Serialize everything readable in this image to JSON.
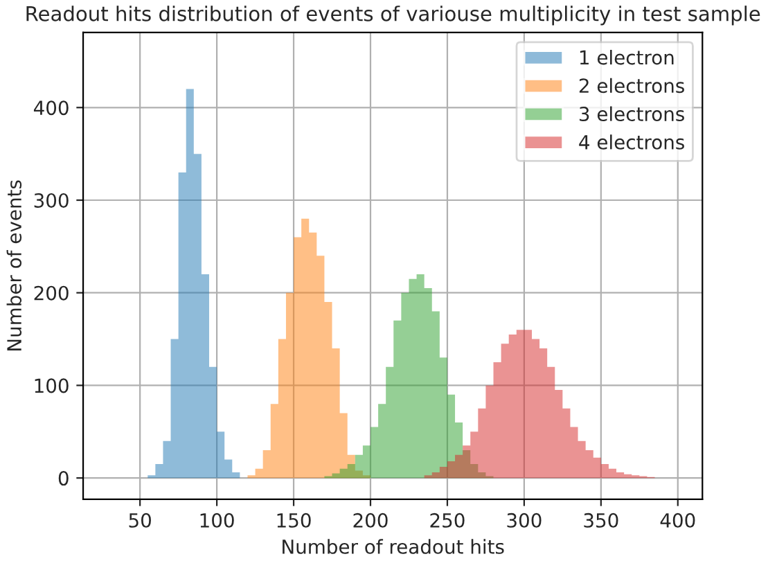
{
  "chart_data": {
    "type": "histogram",
    "title": "Readout hits distribution of events of variouse multiplicity in test sample",
    "xlabel": "Number of readout hits",
    "ylabel": "Number of events",
    "xlim": [
      13,
      416
    ],
    "ylim": [
      -23,
      481
    ],
    "xticks": [
      50,
      100,
      150,
      200,
      250,
      300,
      350,
      400
    ],
    "yticks": [
      0,
      100,
      200,
      300,
      400
    ],
    "grid": true,
    "legend": "top right",
    "bins": [
      55,
      60,
      65,
      70,
      75,
      80,
      85,
      90,
      95,
      100,
      105,
      110,
      115,
      120,
      125,
      130,
      135,
      140,
      145,
      150,
      155,
      160,
      165,
      170,
      175,
      180,
      185,
      190,
      195,
      200,
      205,
      210,
      215,
      220,
      225,
      230,
      235,
      240,
      245,
      250,
      255,
      260,
      265,
      270,
      275,
      280,
      285,
      290,
      295,
      300,
      305,
      310,
      315,
      320,
      325,
      330,
      335,
      340,
      345,
      350,
      355,
      360,
      365,
      370,
      375,
      380,
      385
    ],
    "series": [
      {
        "name": "1 electron",
        "color": "#1f77b4",
        "values": [
          3,
          15,
          40,
          150,
          330,
          420,
          350,
          220,
          120,
          50,
          20,
          6,
          0,
          0,
          0,
          0,
          0,
          0,
          0,
          0,
          0,
          0,
          0,
          0,
          0,
          0,
          0,
          0,
          0,
          0,
          0,
          0,
          0,
          0,
          0,
          0,
          0,
          0,
          0,
          0,
          0,
          0,
          0,
          0,
          0,
          0,
          0,
          0,
          0,
          0,
          0,
          0,
          0,
          0,
          0,
          0,
          0,
          0,
          0,
          0,
          0,
          0,
          0,
          0,
          0,
          0
        ]
      },
      {
        "name": "2 electrons",
        "color": "#ff7f0e",
        "values": [
          0,
          0,
          0,
          0,
          0,
          0,
          0,
          0,
          0,
          0,
          0,
          0,
          0,
          3,
          10,
          30,
          80,
          150,
          200,
          260,
          280,
          265,
          240,
          190,
          140,
          70,
          25,
          8,
          3,
          0,
          0,
          0,
          0,
          0,
          0,
          0,
          0,
          0,
          0,
          0,
          0,
          0,
          0,
          0,
          0,
          0,
          0,
          0,
          0,
          0,
          0,
          0,
          0,
          0,
          0,
          0,
          0,
          0,
          0,
          0,
          0,
          0,
          0,
          0,
          0,
          0
        ]
      },
      {
        "name": "3 electrons",
        "color": "#2ca02c",
        "values": [
          0,
          0,
          0,
          0,
          0,
          0,
          0,
          0,
          0,
          0,
          0,
          0,
          0,
          0,
          0,
          0,
          0,
          0,
          0,
          0,
          0,
          0,
          0,
          2,
          5,
          10,
          15,
          25,
          35,
          55,
          80,
          120,
          170,
          200,
          215,
          220,
          205,
          180,
          130,
          90,
          60,
          30,
          15,
          6,
          2,
          0,
          0,
          0,
          0,
          0,
          0,
          0,
          0,
          0,
          0,
          0,
          0,
          0,
          0,
          0,
          0,
          0,
          0,
          0,
          0,
          0
        ]
      },
      {
        "name": "4 electrons",
        "color": "#d62728",
        "values": [
          0,
          0,
          0,
          0,
          0,
          0,
          0,
          0,
          0,
          0,
          0,
          0,
          0,
          0,
          0,
          0,
          0,
          0,
          0,
          0,
          0,
          0,
          0,
          0,
          0,
          0,
          0,
          0,
          0,
          0,
          0,
          0,
          0,
          0,
          0,
          0,
          3,
          6,
          12,
          18,
          25,
          35,
          50,
          75,
          100,
          125,
          145,
          155,
          160,
          160,
          150,
          140,
          120,
          95,
          75,
          55,
          40,
          30,
          22,
          15,
          10,
          6,
          4,
          3,
          2,
          1
        ]
      }
    ]
  }
}
